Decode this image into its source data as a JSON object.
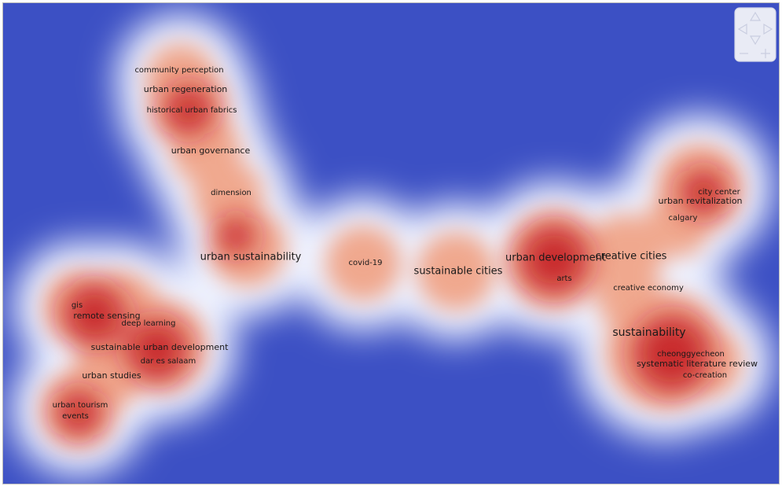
{
  "nodes": [
    {
      "label": "community perception"
    },
    {
      "label": "urban regeneration"
    },
    {
      "label": "historical urban fabrics"
    },
    {
      "label": "urban governance"
    },
    {
      "label": "dimension"
    },
    {
      "label": "urban sustainability"
    },
    {
      "label": "covid-19"
    },
    {
      "label": "sustainable cities"
    },
    {
      "label": "urban development"
    },
    {
      "label": "creative cities"
    },
    {
      "label": "arts"
    },
    {
      "label": "city center"
    },
    {
      "label": "urban revitalization"
    },
    {
      "label": "calgary"
    },
    {
      "label": "creative economy"
    },
    {
      "label": "sustainability"
    },
    {
      "label": "cheonggyecheon"
    },
    {
      "label": "systematic literature review"
    },
    {
      "label": "co-creation"
    },
    {
      "label": "gis"
    },
    {
      "label": "remote sensing"
    },
    {
      "label": "deep learning"
    },
    {
      "label": "sustainable urban development"
    },
    {
      "label": "dar es salaam"
    },
    {
      "label": "urban studies"
    },
    {
      "label": "urban tourism"
    },
    {
      "label": "events"
    }
  ]
}
